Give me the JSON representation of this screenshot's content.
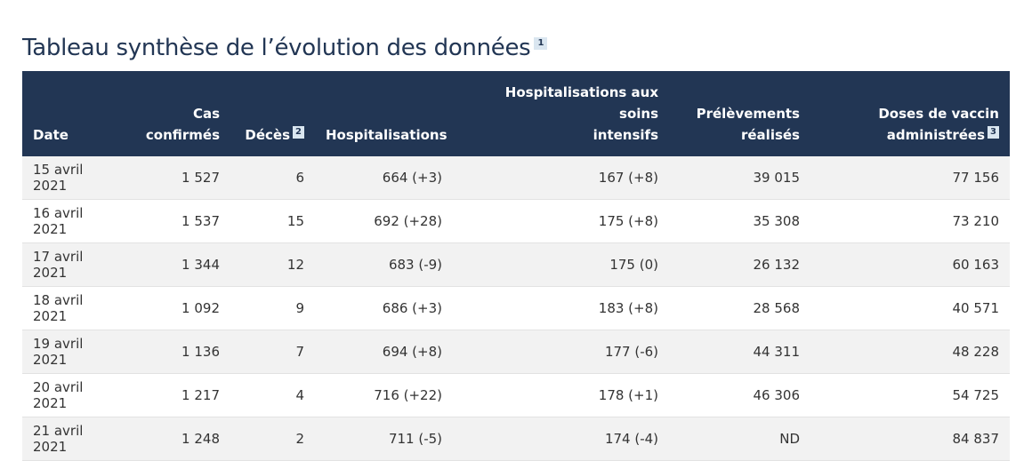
{
  "title": "Tableau synthèse de l’évolution des données",
  "title_footnote": "1",
  "columns": [
    {
      "line1": "",
      "line2": "Date",
      "footnote": ""
    },
    {
      "line1": "Cas",
      "line2": "confirmés",
      "footnote": ""
    },
    {
      "line1": "",
      "line2": "Décès",
      "footnote": "2"
    },
    {
      "line1": "",
      "line2": "Hospitalisations",
      "footnote": ""
    },
    {
      "line1": "Hospitalisations aux soins",
      "line2": "intensifs",
      "footnote": ""
    },
    {
      "line1": "Prélèvements",
      "line2": "réalisés",
      "footnote": ""
    },
    {
      "line1": "Doses de vaccin",
      "line2": "administrées",
      "footnote": "3"
    }
  ],
  "rows": [
    [
      "15 avril 2021",
      "1 527",
      "6",
      "664 (+3)",
      "167 (+8)",
      "39 015",
      "77 156"
    ],
    [
      "16 avril 2021",
      "1 537",
      "15",
      "692 (+28)",
      "175 (+8)",
      "35 308",
      "73 210"
    ],
    [
      "17 avril 2021",
      "1 344",
      "12",
      "683 (-9)",
      "175 (0)",
      "26 132",
      "60 163"
    ],
    [
      "18 avril 2021",
      "1 092",
      "9",
      "686 (+3)",
      "183 (+8)",
      "28 568",
      "40 571"
    ],
    [
      "19 avril 2021",
      "1 136",
      "7",
      "694 (+8)",
      "177 (-6)",
      "44 311",
      "48 228"
    ],
    [
      "20 avril 2021",
      "1 217",
      "4",
      "716 (+22)",
      "178 (+1)",
      "46 306",
      "54 725"
    ],
    [
      "21 avril 2021",
      "1 248",
      "2",
      "711 (-5)",
      "174 (-4)",
      "ND",
      "84 837"
    ]
  ],
  "colors": {
    "header_bg": "#223654",
    "footnote_bg": "#dae6f0",
    "stripe": "#f2f2f2"
  }
}
